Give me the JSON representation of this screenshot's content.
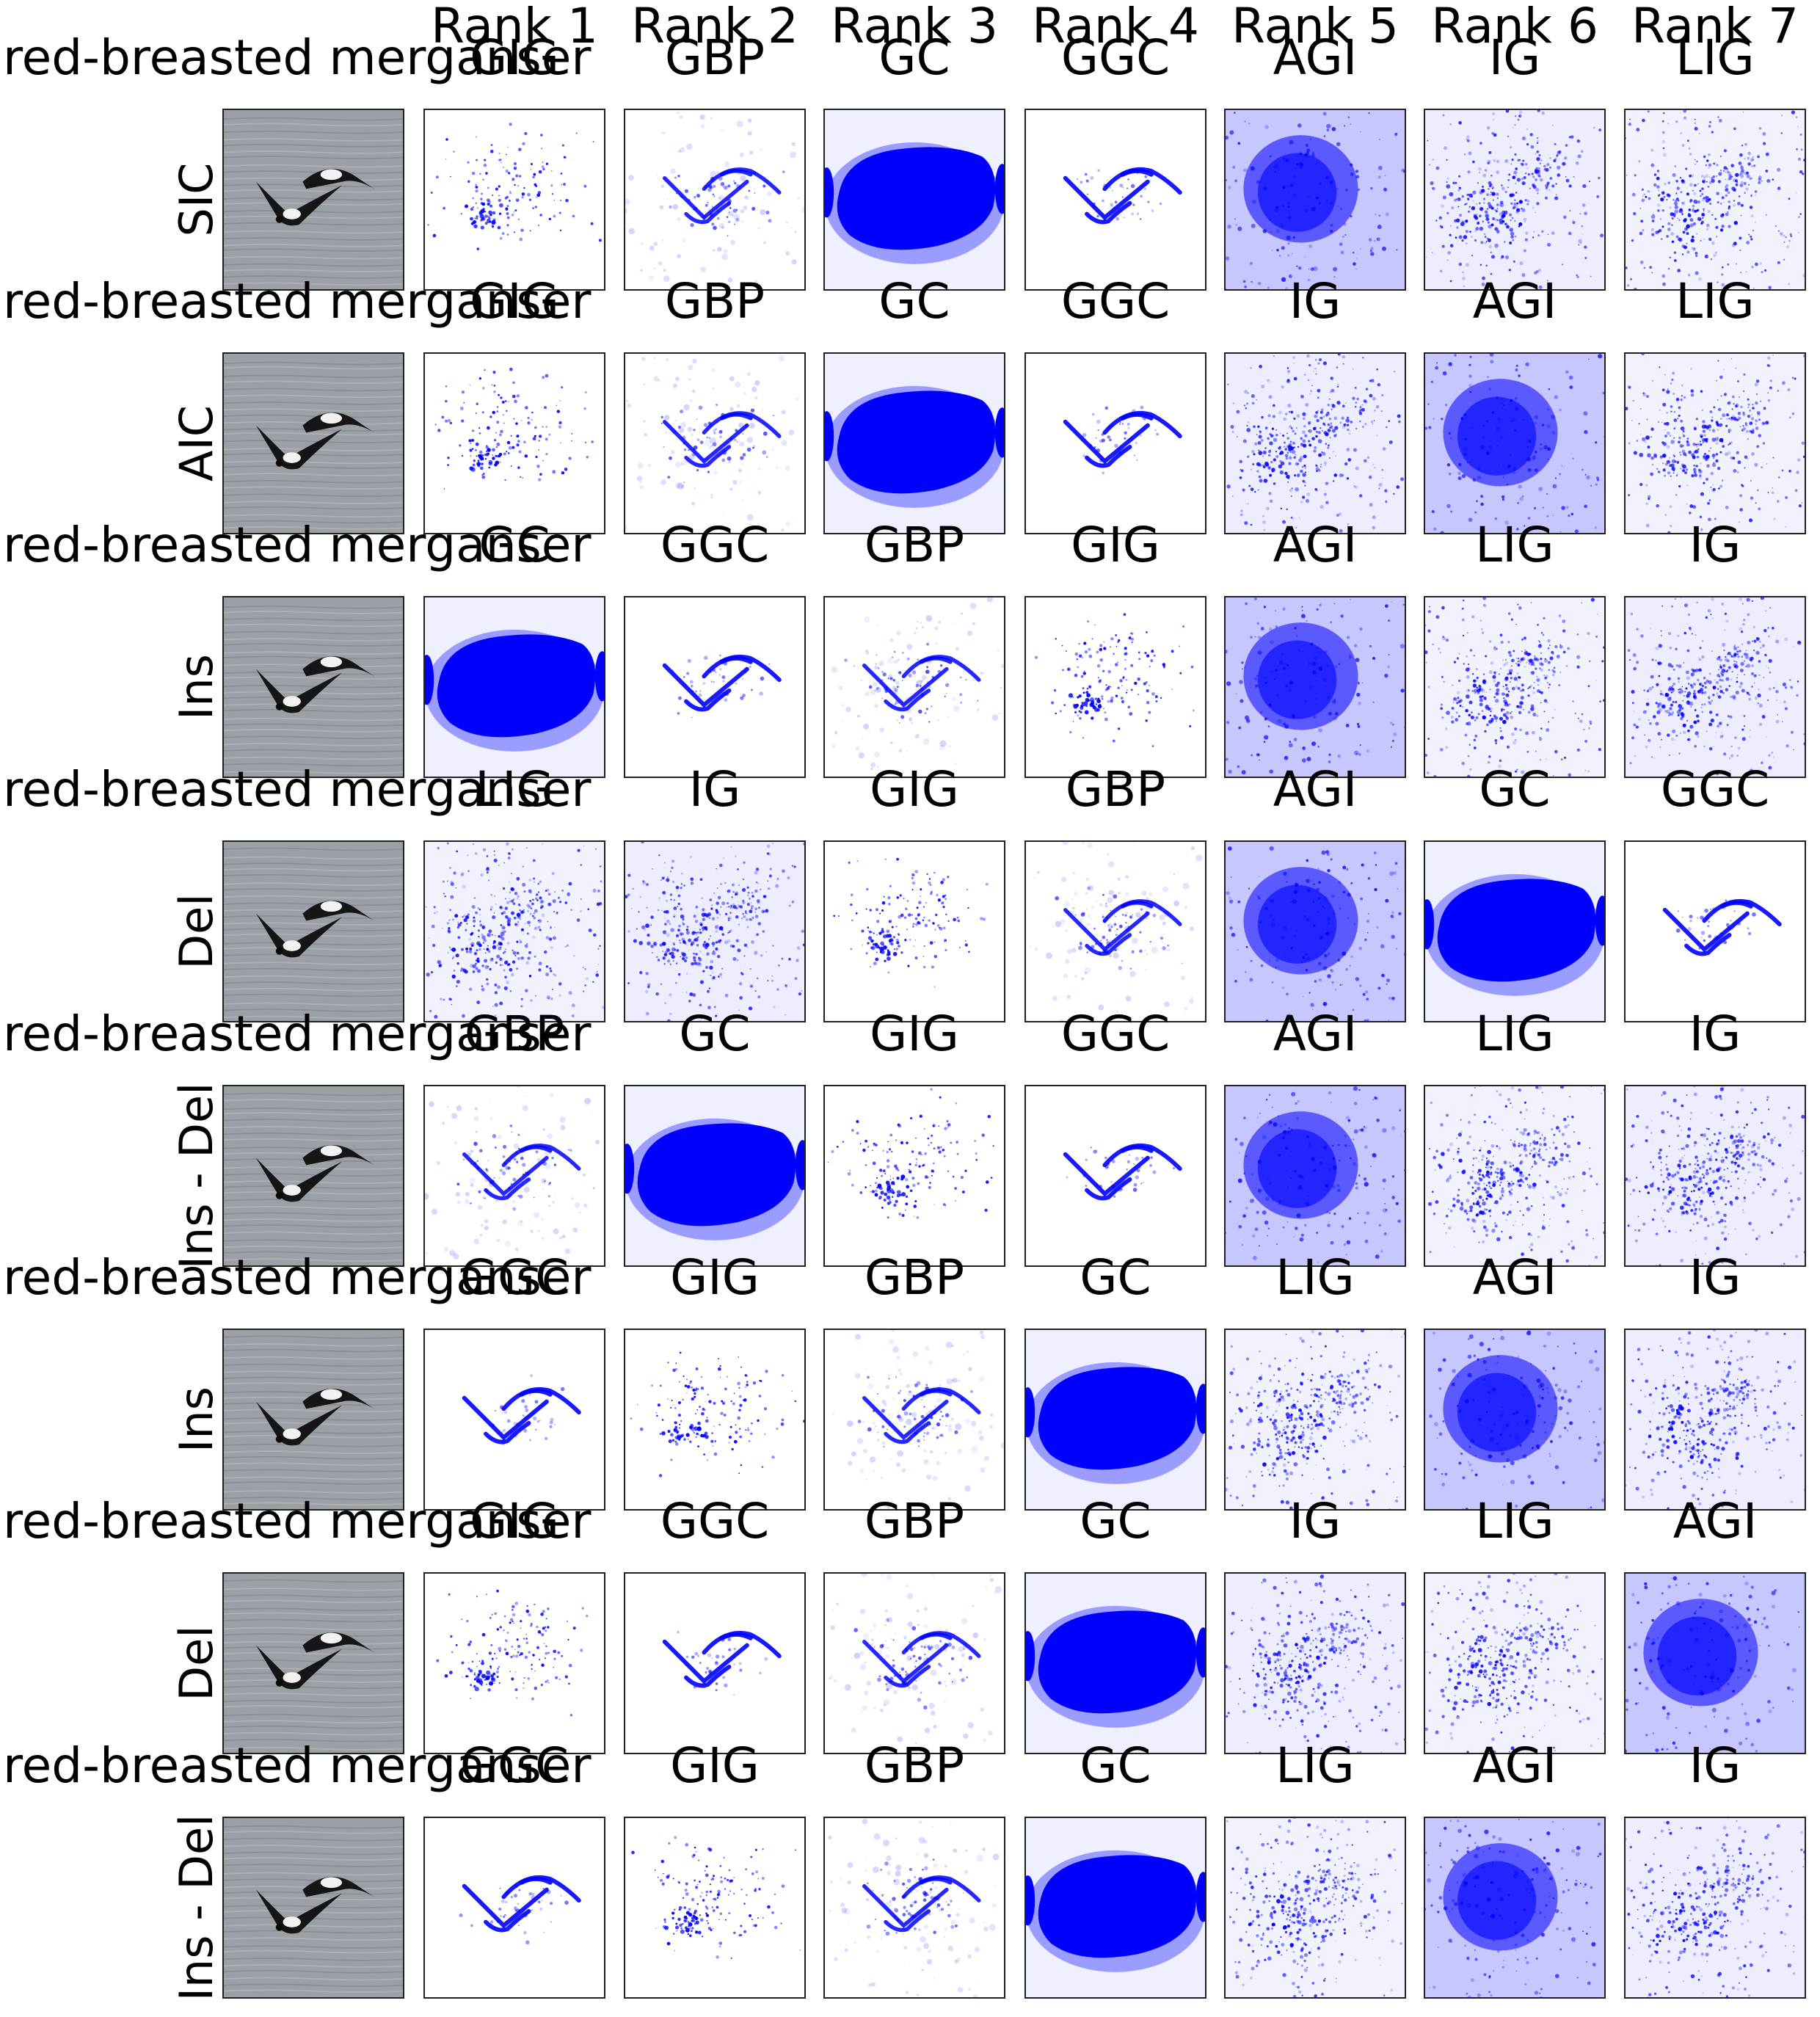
{
  "figure": {
    "column_headers": [
      "Rank 1",
      "Rank 2",
      "Rank 3",
      "Rank 4",
      "Rank 5",
      "Rank 6",
      "Rank 7"
    ],
    "saliency_color": "#0000ff",
    "photo_background": "#9aa0a6",
    "rows": [
      {
        "class_label": "red-breasted merganser",
        "metric": "SIC",
        "methods": [
          "GIG",
          "GBP",
          "GC",
          "GGC",
          "AGI",
          "IG",
          "LIG"
        ]
      },
      {
        "class_label": "red-breasted merganser",
        "metric": "AIC",
        "methods": [
          "GIG",
          "GBP",
          "GC",
          "GGC",
          "IG",
          "AGI",
          "LIG"
        ]
      },
      {
        "class_label": "red-breasted merganser",
        "metric": "Ins",
        "methods": [
          "GC",
          "GGC",
          "GBP",
          "GIG",
          "AGI",
          "LIG",
          "IG"
        ]
      },
      {
        "class_label": "red-breasted merganser",
        "metric": "Del",
        "methods": [
          "LIG",
          "IG",
          "GIG",
          "GBP",
          "AGI",
          "GC",
          "GGC"
        ]
      },
      {
        "class_label": "red-breasted merganser",
        "metric": "Ins - Del",
        "methods": [
          "GBP",
          "GC",
          "GIG",
          "GGC",
          "AGI",
          "LIG",
          "IG"
        ]
      },
      {
        "class_label": "red-breasted merganser",
        "metric": "Ins",
        "methods": [
          "GGC",
          "GIG",
          "GBP",
          "GC",
          "LIG",
          "AGI",
          "IG"
        ]
      },
      {
        "class_label": "red-breasted merganser",
        "metric": "Del",
        "methods": [
          "GIG",
          "GGC",
          "GBP",
          "GC",
          "IG",
          "LIG",
          "AGI"
        ]
      },
      {
        "class_label": "red-breasted merganser",
        "metric": "Ins - Del",
        "methods": [
          "GGC",
          "GIG",
          "GBP",
          "GC",
          "LIG",
          "AGI",
          "IG"
        ]
      }
    ]
  }
}
